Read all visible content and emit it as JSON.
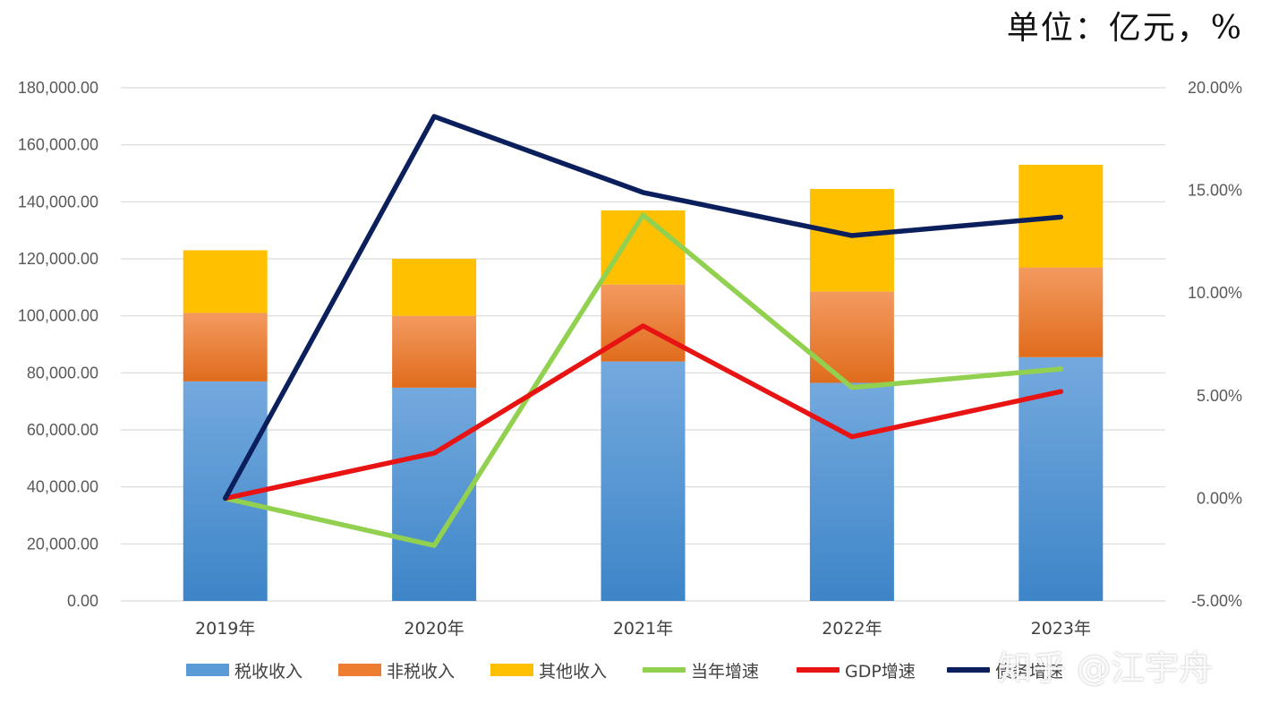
{
  "unit_label": "单位：亿元，%",
  "watermark": "知乎 @江宇舟",
  "chart_data": {
    "type": "bar",
    "stacked": true,
    "categories": [
      "2019年",
      "2020年",
      "2021年",
      "2022年",
      "2023年"
    ],
    "series": [
      {
        "name": "税收收入",
        "type": "bar",
        "axis": "left",
        "color": "#5b9bd5",
        "values": [
          77000,
          74800,
          84000,
          76500,
          85500
        ]
      },
      {
        "name": "非税收入",
        "type": "bar",
        "axis": "left",
        "color": "#ed7d31",
        "values": [
          24000,
          25200,
          27000,
          32000,
          31500
        ]
      },
      {
        "name": "其他收入",
        "type": "bar",
        "axis": "left",
        "color": "#ffc000",
        "values": [
          22000,
          20000,
          26000,
          36000,
          36000
        ]
      },
      {
        "name": "当年增速",
        "type": "line",
        "axis": "right",
        "color": "#92d050",
        "values": [
          0.0,
          -2.3,
          13.8,
          5.4,
          6.3
        ]
      },
      {
        "name": "GDP增速",
        "type": "line",
        "axis": "right",
        "color": "#e81414",
        "values": [
          0.0,
          2.2,
          8.4,
          3.0,
          5.2
        ]
      },
      {
        "name": "债务增速",
        "type": "line",
        "axis": "right",
        "color": "#0b1f5c",
        "values": [
          0.0,
          18.6,
          14.9,
          12.8,
          13.7
        ]
      }
    ],
    "y_left": {
      "min": 0,
      "max": 180000,
      "ticks": [
        "0.00",
        "20,000.00",
        "40,000.00",
        "60,000.00",
        "80,000.00",
        "100,000.00",
        "120,000.00",
        "140,000.00",
        "160,000.00",
        "180,000.00"
      ]
    },
    "y_right": {
      "min": -5,
      "max": 20,
      "ticks": [
        "-5.00%",
        "0.00%",
        "5.00%",
        "10.00%",
        "15.00%",
        "20.00%"
      ]
    },
    "grid": true,
    "legend_position": "bottom"
  }
}
